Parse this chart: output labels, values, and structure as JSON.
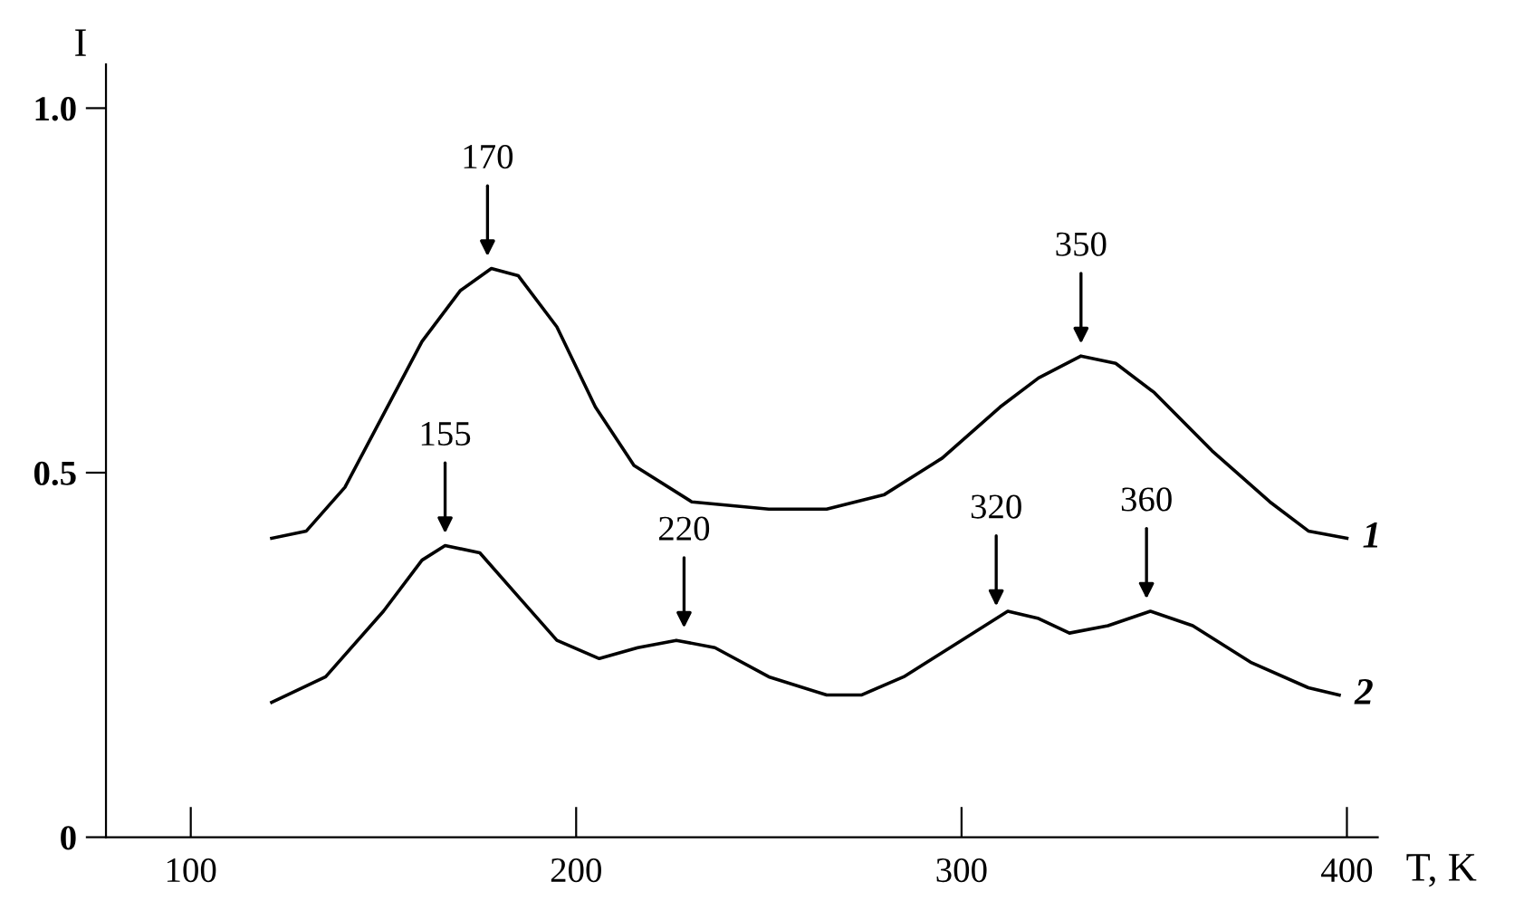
{
  "chart_data": {
    "type": "line",
    "xlabel": "T, K",
    "ylabel": "I",
    "xlim": [
      78,
      408
    ],
    "ylim": [
      0,
      1.06
    ],
    "xticks": [
      100,
      200,
      300,
      400
    ],
    "yticks": [
      {
        "value": 0,
        "label": "0"
      },
      0.5,
      {
        "value": 1.0,
        "label": "1.0"
      }
    ],
    "grid": false,
    "legend": false,
    "marker": "none",
    "line_style": "solid",
    "series": [
      {
        "name": "1",
        "color": "#000000",
        "x": [
          121,
          130,
          140,
          150,
          160,
          170,
          178,
          185,
          195,
          205,
          215,
          230,
          250,
          265,
          280,
          295,
          310,
          320,
          331,
          340,
          350,
          365,
          380,
          390,
          400
        ],
        "values": [
          0.41,
          0.42,
          0.48,
          0.58,
          0.68,
          0.75,
          0.78,
          0.77,
          0.7,
          0.59,
          0.51,
          0.46,
          0.45,
          0.45,
          0.47,
          0.52,
          0.59,
          0.63,
          0.66,
          0.65,
          0.61,
          0.53,
          0.46,
          0.42,
          0.41
        ]
      },
      {
        "name": "2",
        "color": "#000000",
        "x": [
          121,
          135,
          150,
          160,
          166,
          175,
          185,
          195,
          206,
          216,
          226,
          236,
          250,
          265,
          274,
          285,
          300,
          312,
          320,
          328,
          338,
          349,
          360,
          375,
          390,
          398
        ],
        "values": [
          0.185,
          0.22,
          0.31,
          0.38,
          0.4,
          0.39,
          0.33,
          0.27,
          0.245,
          0.26,
          0.27,
          0.26,
          0.22,
          0.195,
          0.195,
          0.22,
          0.27,
          0.31,
          0.3,
          0.28,
          0.29,
          0.31,
          0.29,
          0.24,
          0.205,
          0.195
        ]
      }
    ],
    "annotations": [
      {
        "text": "170",
        "x": 177,
        "y": 0.79
      },
      {
        "text": "350",
        "x": 331,
        "y": 0.67
      },
      {
        "text": "155",
        "x": 166,
        "y": 0.41
      },
      {
        "text": "220",
        "x": 228,
        "y": 0.28
      },
      {
        "text": "320",
        "x": 309,
        "y": 0.31
      },
      {
        "text": "360",
        "x": 348,
        "y": 0.32
      }
    ]
  }
}
